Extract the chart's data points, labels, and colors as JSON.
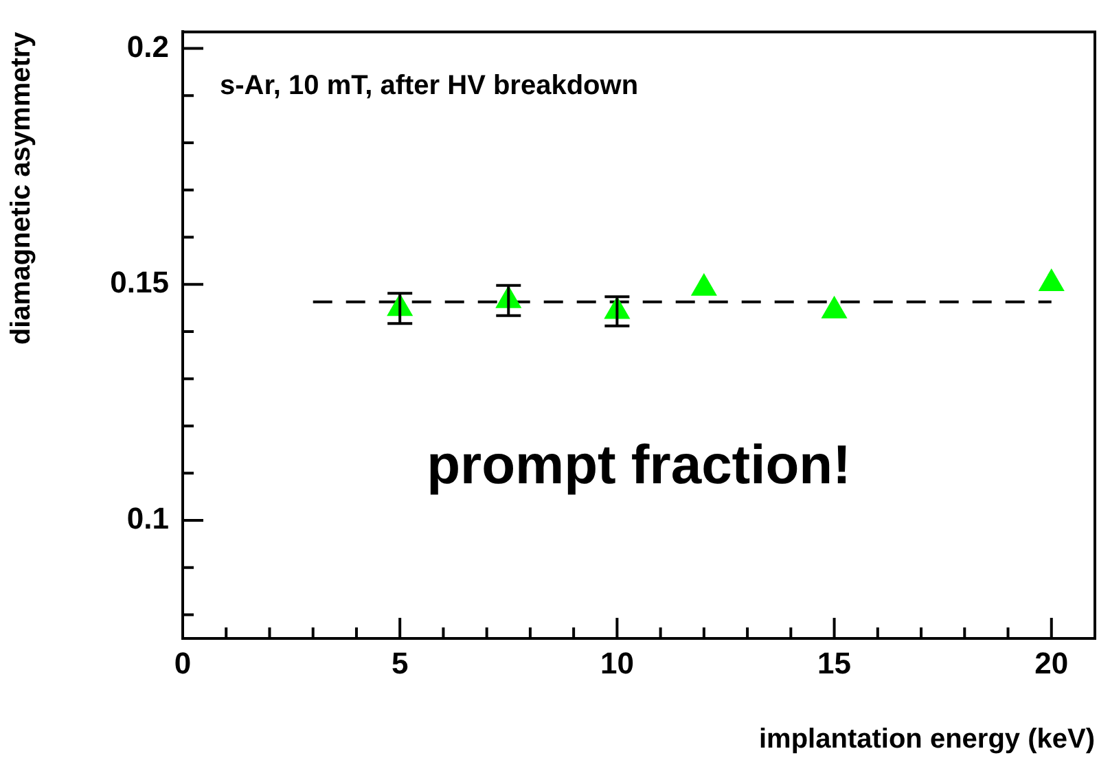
{
  "chart_data": {
    "type": "scatter",
    "xlabel": "implantation energy (keV)",
    "ylabel": "diamagnetic asymmetry",
    "annotations": [
      "s-Ar, 10 mT, after HV breakdown",
      "prompt fraction!"
    ],
    "xlim": [
      0,
      21
    ],
    "xticks": [
      0,
      {
        "value": 1,
        "label": null
      },
      {
        "value": 2,
        "label": null
      },
      {
        "value": 3,
        "label": null
      },
      {
        "value": 4,
        "label": null
      },
      5,
      {
        "value": 6,
        "label": null
      },
      {
        "value": 7,
        "label": null
      },
      {
        "value": 8,
        "label": null
      },
      {
        "value": 9,
        "label": null
      },
      10,
      {
        "value": 11,
        "label": null
      },
      {
        "value": 12,
        "label": null
      },
      {
        "value": 13,
        "label": null
      },
      {
        "value": 14,
        "label": null
      },
      15,
      {
        "value": 16,
        "label": null
      },
      {
        "value": 17,
        "label": null
      },
      {
        "value": 18,
        "label": null
      },
      {
        "value": 19,
        "label": null
      },
      20
    ],
    "ylim": [
      0.075,
      0.2035
    ],
    "yticks": [
      {
        "value": 0.08,
        "label": null
      },
      {
        "value": 0.09,
        "label": null
      },
      0.1,
      {
        "value": 0.11,
        "label": null
      },
      {
        "value": 0.12,
        "label": null
      },
      {
        "value": 0.13,
        "label": null
      },
      {
        "value": 0.14,
        "label": null
      },
      0.15,
      {
        "value": 0.16,
        "label": null
      },
      {
        "value": 0.17,
        "label": null
      },
      {
        "value": 0.18,
        "label": null
      },
      {
        "value": 0.19,
        "label": null
      },
      0.2
    ],
    "grid": false,
    "legend": false,
    "marker": "triangle",
    "series": [
      {
        "type": "scatter",
        "color": "#00ff00",
        "x": [
          5,
          7.5,
          10,
          12,
          15,
          20
        ],
        "values": [
          0.1449,
          0.1466,
          0.1443,
          0.1492,
          0.1444,
          0.1502
        ],
        "errors": [
          0.0032,
          0.0032,
          0.0031,
          null,
          null,
          null
        ]
      },
      {
        "type": "line",
        "color": "#000000",
        "line_style": "dashed",
        "marker": "none",
        "x": [
          3,
          20
        ],
        "values": [
          0.1463,
          0.1463
        ]
      }
    ]
  }
}
